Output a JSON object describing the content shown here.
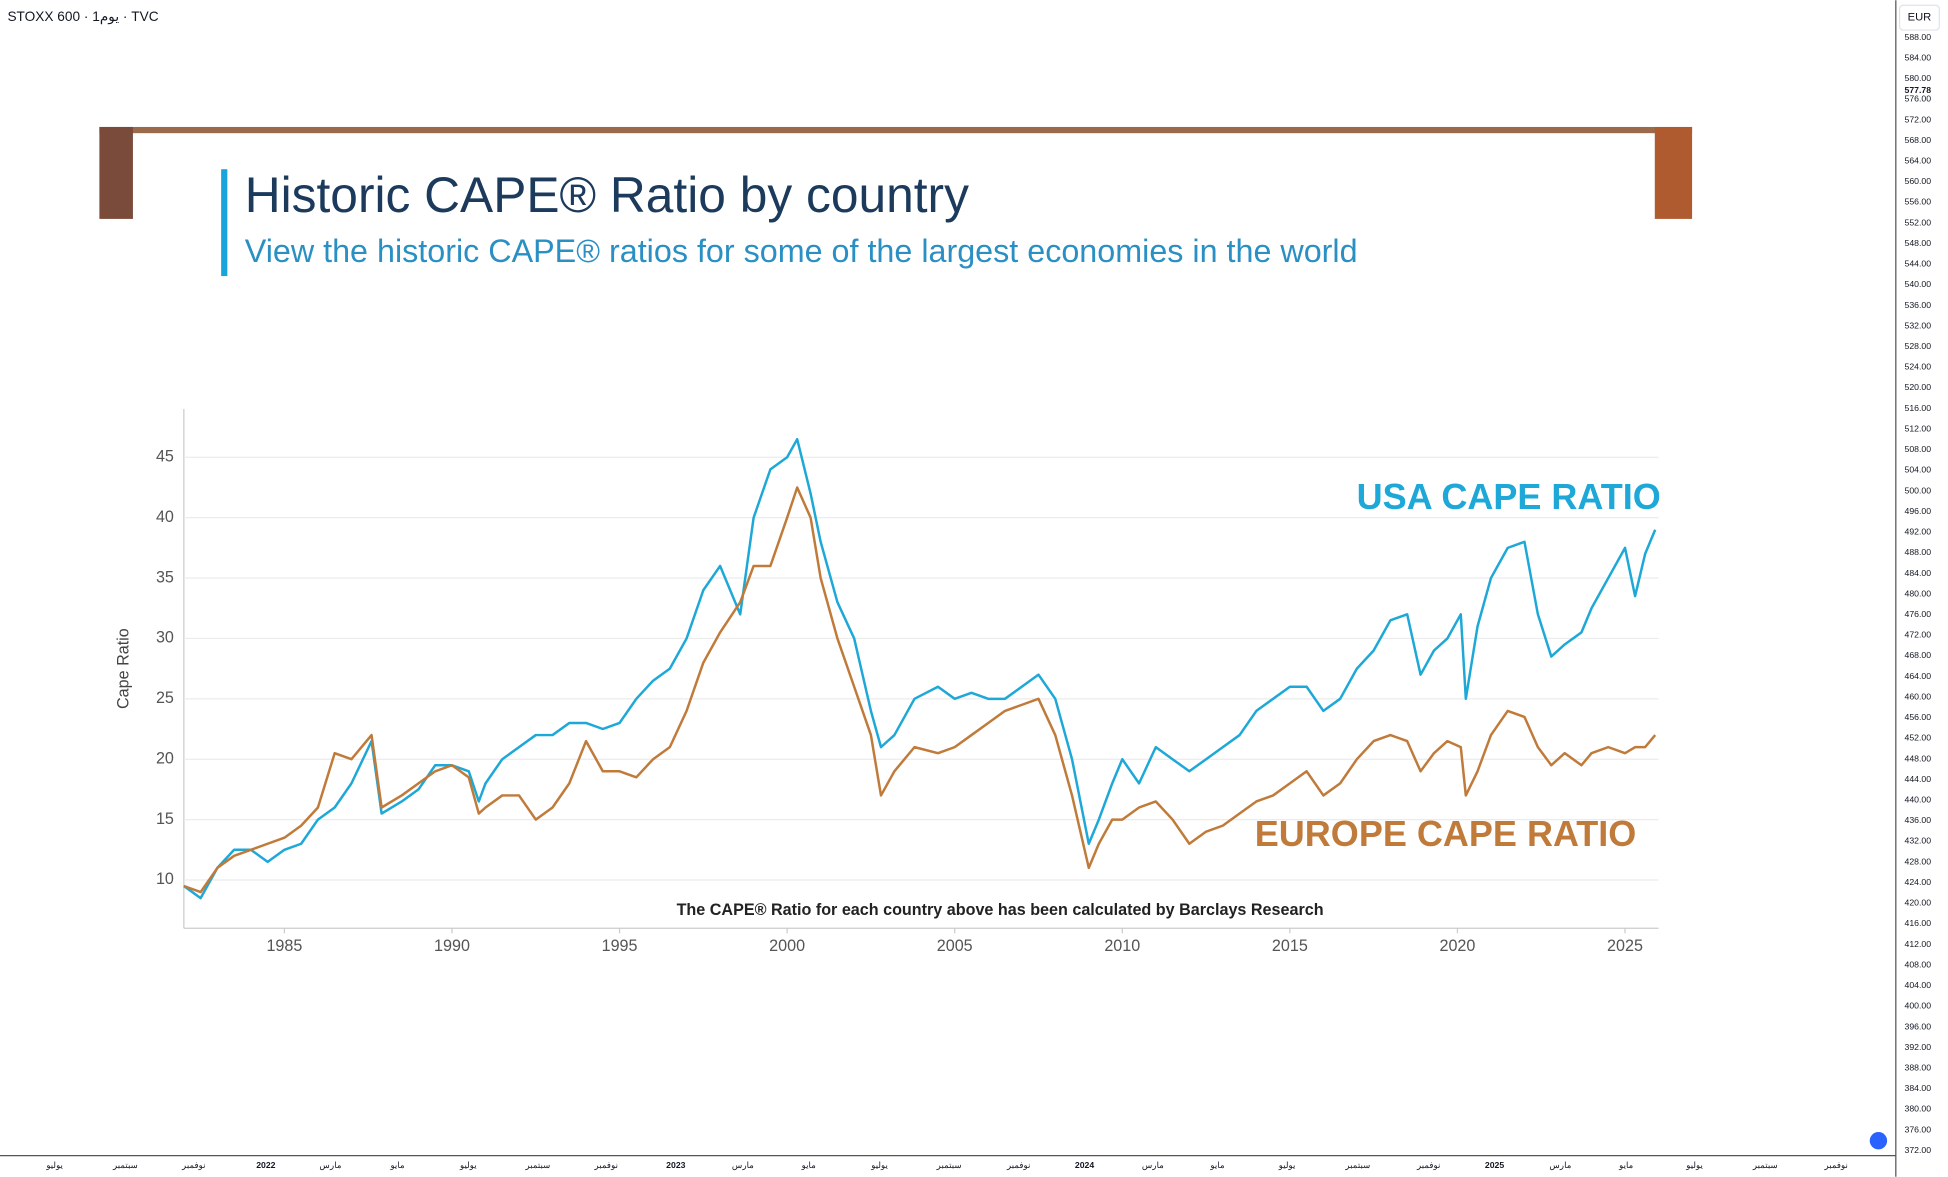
{
  "header": {
    "symbol": "STOXX 600 · 1يوم · TVC"
  },
  "price_axis": {
    "currency": "EUR",
    "last_price": "577.78",
    "labels": [
      "588.00",
      "584.00",
      "580.00",
      "576.00",
      "572.00",
      "568.00",
      "564.00",
      "560.00",
      "556.00",
      "552.00",
      "548.00",
      "544.00",
      "540.00",
      "536.00",
      "532.00",
      "528.00",
      "524.00",
      "520.00",
      "516.00",
      "512.00",
      "508.00",
      "504.00",
      "500.00",
      "496.00",
      "492.00",
      "488.00",
      "484.00",
      "480.00",
      "476.00",
      "472.00",
      "468.00",
      "464.00",
      "460.00",
      "456.00",
      "452.00",
      "448.00",
      "444.00",
      "440.00",
      "436.00",
      "432.00",
      "428.00",
      "424.00",
      "420.00",
      "416.00",
      "412.00",
      "408.00",
      "404.00",
      "400.00",
      "396.00",
      "392.00",
      "388.00",
      "384.00",
      "380.00",
      "376.00",
      "372.00"
    ]
  },
  "time_axis": {
    "labels": [
      "يوليو",
      "سبتمبر",
      "نوفمبر",
      "2022",
      "مارس",
      "مايو",
      "يوليو",
      "سبتمبر",
      "نوفمبر",
      "2023",
      "مارس",
      "مايو",
      "يوليو",
      "سبتمبر",
      "نوفمبر",
      "2024",
      "مارس",
      "مايو",
      "يوليو",
      "سبتمبر",
      "نوفمبر",
      "2025",
      "مارس",
      "مايو",
      "يوليو",
      "سبتمبر",
      "نوفمبر"
    ]
  },
  "chart_data": {
    "type": "line",
    "title": "Historic CAPE® Ratio by country",
    "subtitle": "View the historic CAPE® ratios for some of the largest economies in the world",
    "y_label": "Cape Ratio",
    "note": "The CAPE® Ratio for each country above has been calculated by Barclays Research",
    "x": [
      1982,
      1982.5,
      1983,
      1983.5,
      1984,
      1984.5,
      1985,
      1985.5,
      1986,
      1986.5,
      1987,
      1987.6,
      1987.9,
      1988.5,
      1989,
      1989.5,
      1990,
      1990.5,
      1990.8,
      1991,
      1991.5,
      1992,
      1992.5,
      1993,
      1993.5,
      1994,
      1994.5,
      1995,
      1995.5,
      1996,
      1996.5,
      1997,
      1997.5,
      1998,
      1998.6,
      1999,
      1999.5,
      2000,
      2000.3,
      2000.7,
      2001,
      2001.5,
      2002,
      2002.5,
      2002.8,
      2003.2,
      2003.8,
      2004.5,
      2005,
      2005.5,
      2006,
      2006.5,
      2007,
      2007.5,
      2008,
      2008.5,
      2009,
      2009.3,
      2009.7,
      2010,
      2010.5,
      2011,
      2011.5,
      2012,
      2012.5,
      2013,
      2013.5,
      2014,
      2014.5,
      2015,
      2015.5,
      2016,
      2016.5,
      2017,
      2017.5,
      2018,
      2018.5,
      2018.9,
      2019.3,
      2019.7,
      2020.1,
      2020.25,
      2020.6,
      2021,
      2021.5,
      2022,
      2022.4,
      2022.8,
      2023.2,
      2023.7,
      2024,
      2024.5,
      2025,
      2025.3,
      2025.6,
      2025.9
    ],
    "series": [
      {
        "name": "USA CAPE RATIO",
        "color": "#1da8d8",
        "values": [
          9.5,
          8.5,
          11,
          12.5,
          12.5,
          11.5,
          12.5,
          13,
          15,
          16,
          18,
          21.5,
          15.5,
          16.5,
          17.5,
          19.5,
          19.5,
          19,
          16.5,
          18,
          20,
          21,
          22,
          22,
          23,
          23,
          22.5,
          23,
          25,
          26.5,
          27.5,
          30,
          34,
          36,
          32,
          40,
          44,
          45,
          46.5,
          42,
          38,
          33,
          30,
          24,
          21,
          22,
          25,
          26,
          25,
          25.5,
          25,
          25,
          26,
          27,
          25,
          20,
          13,
          15,
          18,
          20,
          18,
          21,
          20,
          19,
          20,
          21,
          22,
          24,
          25,
          26,
          26,
          24,
          25,
          27.5,
          29,
          31.5,
          32,
          27,
          29,
          30,
          32,
          25,
          31,
          35,
          37.5,
          38,
          32,
          28.5,
          29.5,
          30.5,
          32.5,
          35,
          37.5,
          33.5,
          37,
          39
        ]
      },
      {
        "name": "EUROPE CAPE RATIO",
        "color": "#c07a3a",
        "values": [
          9.5,
          9,
          11,
          12,
          12.5,
          13,
          13.5,
          14.5,
          16,
          20.5,
          20,
          22,
          16,
          17,
          18,
          19,
          19.5,
          18.5,
          15.5,
          16,
          17,
          17,
          15,
          16,
          18,
          21.5,
          19,
          19,
          18.5,
          20,
          21,
          24,
          28,
          30.5,
          33,
          36,
          36,
          40,
          42.5,
          40,
          35,
          30,
          26,
          22,
          17,
          19,
          21,
          20.5,
          21,
          22,
          23,
          24,
          24.5,
          25,
          22,
          17,
          11,
          13,
          15,
          15,
          16,
          16.5,
          15,
          13,
          14,
          14.5,
          15.5,
          16.5,
          17,
          18,
          19,
          17,
          18,
          20,
          21.5,
          22,
          21.5,
          19,
          20.5,
          21.5,
          21,
          17,
          19,
          22,
          24,
          23.5,
          21,
          19.5,
          20.5,
          19.5,
          20.5,
          21,
          20.5,
          21,
          21,
          22
        ]
      }
    ],
    "xlim": [
      1982,
      2026
    ],
    "ylim": [
      6,
      49
    ],
    "xticks": [
      1985,
      1990,
      1995,
      2000,
      2005,
      2010,
      2015,
      2020,
      2025
    ],
    "yticks": [
      10,
      15,
      20,
      25,
      30,
      35,
      40,
      45
    ],
    "grid": true
  }
}
